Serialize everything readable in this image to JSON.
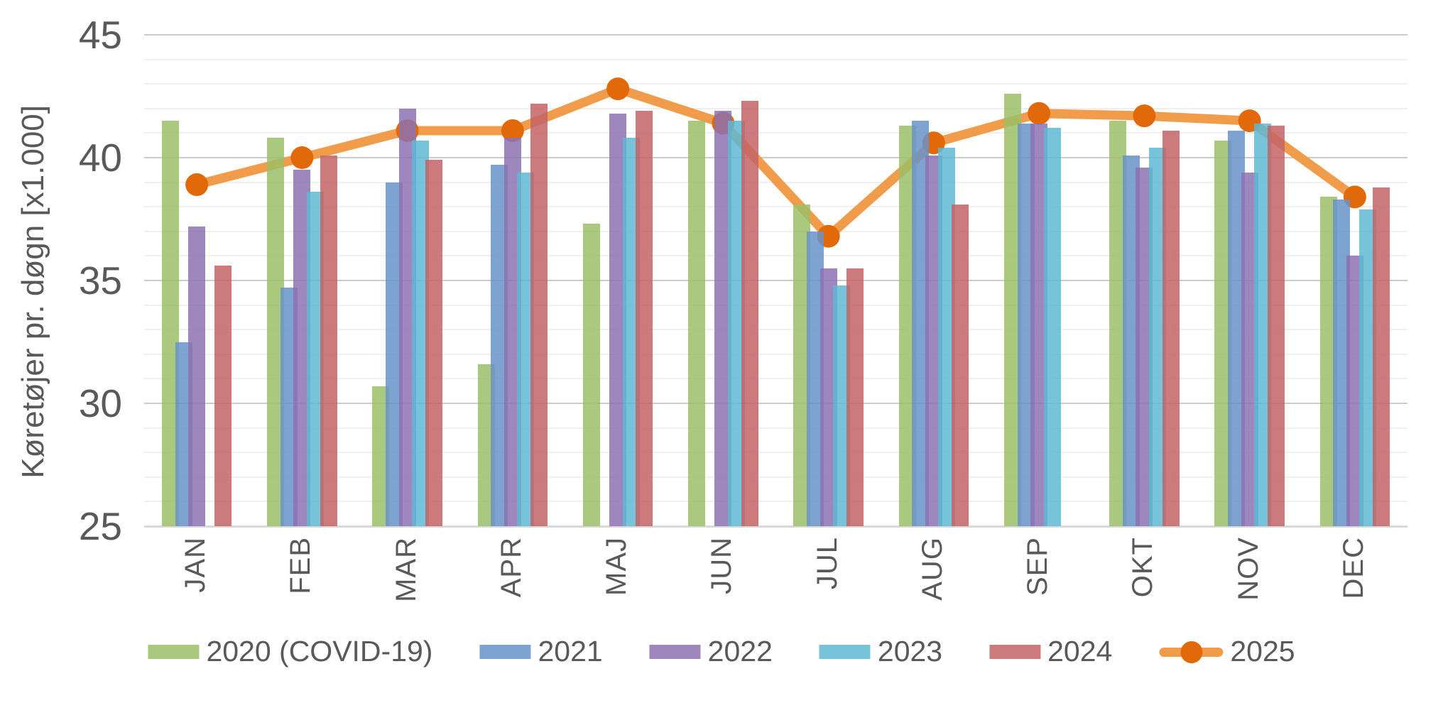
{
  "chart_data": {
    "type": "bar",
    "subtype": "grouped-bars-with-line-overlay",
    "title": "",
    "ylabel": "Køretøjer pr. døgn [x1.000]",
    "xlabel": "",
    "categories": [
      "JAN",
      "FEB",
      "MAR",
      "APR",
      "MAJ",
      "JUN",
      "JUL",
      "AUG",
      "SEP",
      "OKT",
      "NOV",
      "DEC"
    ],
    "ylim": [
      25,
      45
    ],
    "y_major_ticks": [
      45,
      40,
      35,
      30,
      25
    ],
    "y_minor_step": 1,
    "grid": true,
    "legend_position": "bottom",
    "series": [
      {
        "name": "2020 (COVID-19)",
        "style": "bar",
        "color": "#9cc067",
        "values": [
          41.5,
          40.8,
          30.7,
          31.6,
          37.3,
          41.5,
          38.1,
          41.3,
          42.6,
          41.5,
          40.7,
          38.4
        ]
      },
      {
        "name": "2021",
        "style": "bar",
        "color": "#6993c9",
        "values": [
          32.5,
          34.7,
          39.0,
          39.7,
          null,
          null,
          37.0,
          41.5,
          41.4,
          40.1,
          41.1,
          38.3
        ]
      },
      {
        "name": "2022",
        "style": "bar",
        "color": "#8c72b2",
        "values": [
          37.2,
          39.5,
          42.0,
          40.8,
          41.8,
          41.9,
          35.5,
          40.1,
          41.4,
          39.6,
          39.4,
          36.0
        ]
      },
      {
        "name": "2023",
        "style": "bar",
        "color": "#5eb9d3",
        "values": [
          null,
          38.6,
          40.7,
          39.4,
          40.8,
          41.5,
          34.8,
          40.4,
          41.2,
          40.4,
          41.4,
          37.9
        ]
      },
      {
        "name": "2024",
        "style": "bar",
        "color": "#c46365",
        "values": [
          35.6,
          40.1,
          39.9,
          42.2,
          41.9,
          42.3,
          35.5,
          38.1,
          null,
          41.1,
          41.3,
          38.8
        ]
      },
      {
        "name": "2025",
        "style": "line",
        "color": "#f09c4b",
        "marker_color": "#e2690a",
        "values": [
          38.9,
          40.0,
          41.1,
          41.1,
          42.8,
          41.4,
          36.8,
          40.6,
          41.8,
          41.7,
          41.5,
          38.4
        ]
      }
    ]
  },
  "colors": {
    "text": "#595959",
    "grid_major": "#cccccc",
    "grid_minor": "#efefef",
    "axis_baseline": "#d9d9d9",
    "background": "#ffffff"
  }
}
